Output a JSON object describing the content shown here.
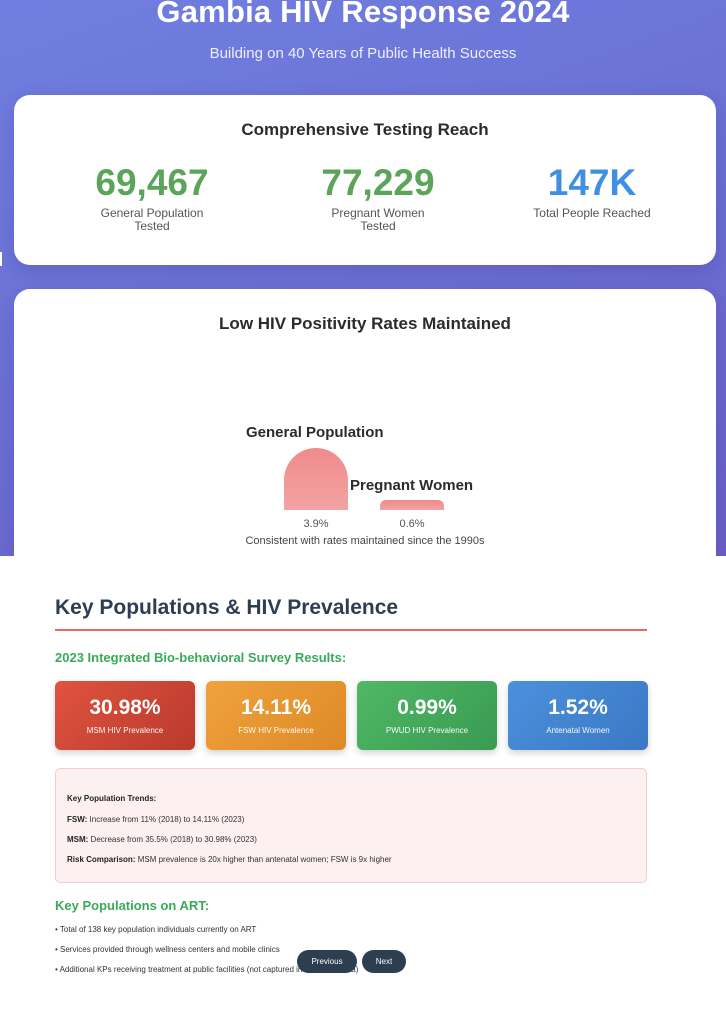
{
  "hero": {
    "title": "Gambia HIV Response 2024",
    "subtitle": "Building on 40 Years of Public Health Success"
  },
  "testing": {
    "title": "Comprehensive Testing Reach",
    "stats": [
      {
        "value": "69,467",
        "label": "General Population Tested",
        "color": "#5aa55a"
      },
      {
        "value": "77,229",
        "label": "Pregnant Women Tested",
        "color": "#5aa55a"
      },
      {
        "value": "147K",
        "label": "Total People Reached",
        "color": "#3f8fe3"
      }
    ]
  },
  "positivity": {
    "title": "Low HIV Positivity Rates Maintained",
    "note": "Consistent with rates maintained since the 1990s"
  },
  "chart_data": {
    "type": "bar",
    "title": "Low HIV Positivity Rates Maintained",
    "categories": [
      "General Population",
      "Pregnant Women"
    ],
    "values": [
      3.9,
      0.6
    ],
    "value_labels": [
      "3.9%",
      "0.6%"
    ],
    "ylabel": "",
    "xlabel": "",
    "ylim": [
      0,
      3.9
    ],
    "bar_color": "#f08b8b"
  },
  "key_populations": {
    "title": "Key Populations & HIV Prevalence",
    "survey_subtitle": "2023 Integrated Bio-behavioral Survey Results:",
    "tiles": [
      {
        "value": "30.98%",
        "label": "MSM HIV Prevalence",
        "color": "#c94434"
      },
      {
        "value": "14.11%",
        "label": "FSW HIV Prevalence",
        "color": "#e8962f"
      },
      {
        "value": "0.99%",
        "label": "PWUD HIV Prevalence",
        "color": "#44a95c"
      },
      {
        "value": "1.52%",
        "label": "Antenatal Women",
        "color": "#4384cf"
      }
    ],
    "trends": {
      "heading": "Key Population Trends:",
      "lines": [
        {
          "term": "FSW:",
          "text": " Increase from 11% (2018) to 14.11% (2023)"
        },
        {
          "term": "MSM:",
          "text": " Decrease from 35.5% (2018) to 30.98% (2023)"
        },
        {
          "term": "Risk Comparison:",
          "text": " MSM prevalence is 20x higher than antenatal women; FSW is 9x higher"
        }
      ]
    },
    "art": {
      "title": "Key Populations on ART:",
      "items": [
        "• Total of 138 key population individuals currently on ART",
        "• Services provided through wellness centers and mobile clinics",
        "• Additional KPs receiving treatment at public facilities (not captured in utilization data)"
      ]
    }
  },
  "nav": {
    "previous": "Previous",
    "next": "Next"
  }
}
